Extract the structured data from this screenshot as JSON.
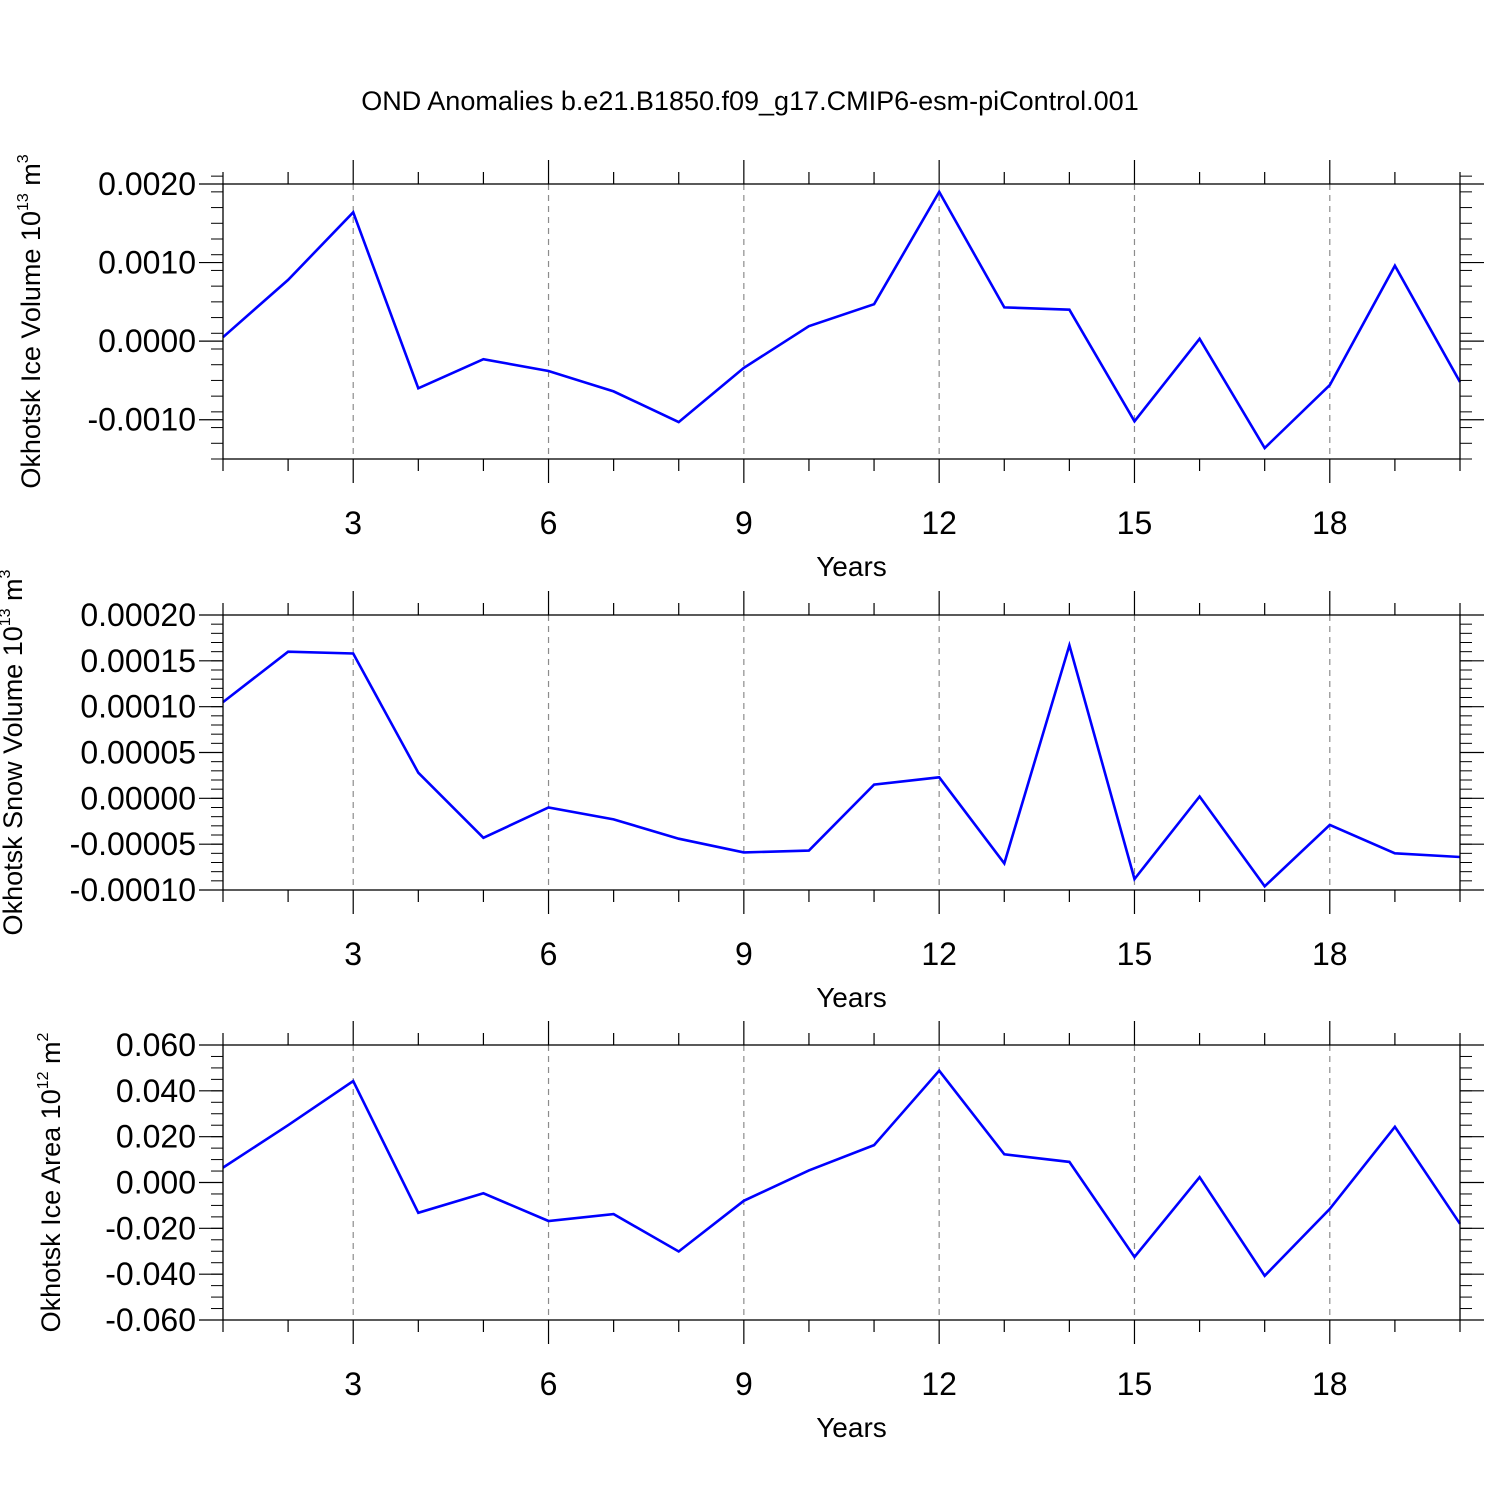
{
  "title": "OND Anomalies b.e21.B1850.f09_g17.CMIP6-esm-piControl.001",
  "colors": {
    "line": "#0000ff",
    "axis": "#000000",
    "grid": "#8c8c8c"
  },
  "chart_data": [
    {
      "type": "line",
      "ylabel": {
        "text": "Okhotsk Ice Volume 10",
        "exp": "13",
        "unit": " m",
        "unit_exp": "3"
      },
      "xlabel": "Years",
      "xlim": [
        1,
        20
      ],
      "ylim": [
        -0.0015,
        0.002
      ],
      "yticks": [
        {
          "value": 0.002,
          "label": "0.0020"
        },
        {
          "value": 0.001,
          "label": "0.0010"
        },
        {
          "value": 0.0,
          "label": "0.0000"
        },
        {
          "value": -0.001,
          "label": "-0.0010"
        }
      ],
      "y_minor_step": 0.0002,
      "xticks": [
        {
          "value": 3,
          "label": "3"
        },
        {
          "value": 6,
          "label": "6"
        },
        {
          "value": 9,
          "label": "9"
        },
        {
          "value": 12,
          "label": "12"
        },
        {
          "value": 15,
          "label": "15"
        },
        {
          "value": 18,
          "label": "18"
        }
      ],
      "grid": "dashed vertical lines at major x ticks",
      "series": [
        {
          "name": "Okhotsk Ice Volume",
          "x": [
            1,
            2,
            3,
            4,
            5,
            6,
            7,
            8,
            9,
            10,
            11,
            12,
            13,
            14,
            15,
            16,
            17,
            18,
            19,
            20
          ],
          "values": [
            5e-05,
            0.00078,
            0.00164,
            -0.0006,
            -0.00023,
            -0.00038,
            -0.00064,
            -0.00103,
            -0.00034,
            0.00019,
            0.00047,
            0.0019,
            0.00043,
            0.0004,
            -0.00102,
            3e-05,
            -0.00136,
            -0.00056,
            0.00096,
            -0.00052
          ]
        }
      ]
    },
    {
      "type": "line",
      "ylabel": {
        "text": "Okhotsk Snow Volume 10",
        "exp": "13",
        "unit": " m",
        "unit_exp": "3"
      },
      "xlabel": "Years",
      "xlim": [
        1,
        20
      ],
      "ylim": [
        -0.0001,
        0.0002
      ],
      "yticks": [
        {
          "value": 0.0002,
          "label": "0.00020"
        },
        {
          "value": 0.00015,
          "label": "0.00015"
        },
        {
          "value": 0.0001,
          "label": "0.00010"
        },
        {
          "value": 5e-05,
          "label": "0.00005"
        },
        {
          "value": 0.0,
          "label": "0.00000"
        },
        {
          "value": -5e-05,
          "label": "-0.00005"
        },
        {
          "value": -0.0001,
          "label": "-0.00010"
        }
      ],
      "y_minor_step": 1e-05,
      "xticks": [
        {
          "value": 3,
          "label": "3"
        },
        {
          "value": 6,
          "label": "6"
        },
        {
          "value": 9,
          "label": "9"
        },
        {
          "value": 12,
          "label": "12"
        },
        {
          "value": 15,
          "label": "15"
        },
        {
          "value": 18,
          "label": "18"
        }
      ],
      "grid": "dashed vertical lines at major x ticks",
      "series": [
        {
          "name": "Okhotsk Snow Volume",
          "x": [
            1,
            2,
            3,
            4,
            5,
            6,
            7,
            8,
            9,
            10,
            11,
            12,
            13,
            14,
            15,
            16,
            17,
            18,
            19,
            20
          ],
          "values": [
            0.000105,
            0.00016,
            0.000158,
            2.8e-05,
            -4.3e-05,
            -1e-05,
            -2.3e-05,
            -4.4e-05,
            -5.9e-05,
            -5.7e-05,
            1.5e-05,
            2.3e-05,
            -7.1e-05,
            0.000167,
            -8.8e-05,
            2e-06,
            -9.6e-05,
            -2.9e-05,
            -6e-05,
            -6.4e-05
          ]
        }
      ]
    },
    {
      "type": "line",
      "ylabel": {
        "text": "Okhotsk Ice Area 10",
        "exp": "12",
        "unit": " m",
        "unit_exp": "2"
      },
      "xlabel": "Years",
      "xlim": [
        1,
        20
      ],
      "ylim": [
        -0.06,
        0.06
      ],
      "yticks": [
        {
          "value": 0.06,
          "label": "0.060"
        },
        {
          "value": 0.04,
          "label": "0.040"
        },
        {
          "value": 0.02,
          "label": "0.020"
        },
        {
          "value": 0.0,
          "label": "0.000"
        },
        {
          "value": -0.02,
          "label": "-0.020"
        },
        {
          "value": -0.04,
          "label": "-0.040"
        },
        {
          "value": -0.06,
          "label": "-0.060"
        }
      ],
      "y_minor_step": 0.005,
      "xticks": [
        {
          "value": 3,
          "label": "3"
        },
        {
          "value": 6,
          "label": "6"
        },
        {
          "value": 9,
          "label": "9"
        },
        {
          "value": 12,
          "label": "12"
        },
        {
          "value": 15,
          "label": "15"
        },
        {
          "value": 18,
          "label": "18"
        }
      ],
      "grid": "dashed vertical lines at major x ticks",
      "series": [
        {
          "name": "Okhotsk Ice Area",
          "x": [
            1,
            2,
            3,
            4,
            5,
            6,
            7,
            8,
            9,
            10,
            11,
            12,
            13,
            14,
            15,
            16,
            17,
            18,
            19,
            20
          ],
          "values": [
            0.0065,
            0.025,
            0.0443,
            -0.0132,
            -0.0047,
            -0.0168,
            -0.0138,
            -0.0301,
            -0.008,
            0.0053,
            0.0163,
            0.0488,
            0.0123,
            0.009,
            -0.0325,
            0.0023,
            -0.0407,
            -0.0115,
            0.0243,
            -0.018
          ]
        }
      ]
    }
  ]
}
